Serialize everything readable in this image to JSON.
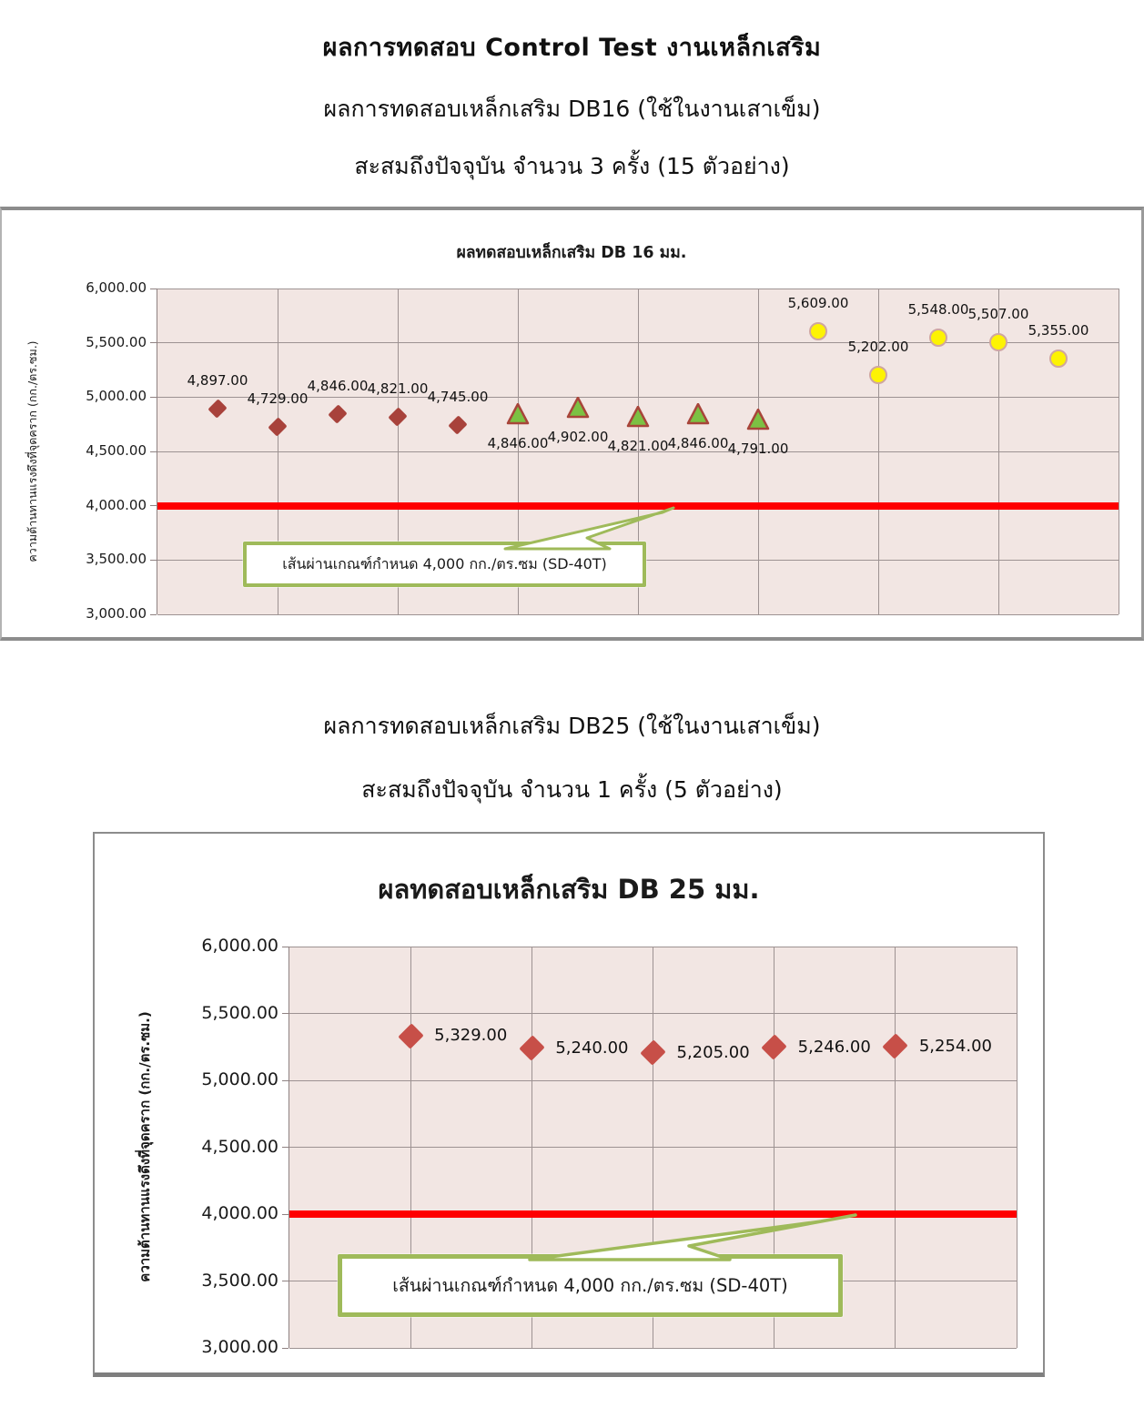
{
  "header": {
    "title": "ผลการทดสอบ Control Test งานเหล็กเสริม",
    "subtitle_line2": "ผลการทดสอบเหล็กเสริม DB16 (ใช้ในงานเสาเข็ม)",
    "subtitle_line3": "สะสมถึงปัจจุบัน จำนวน 3 ครั้ง (15 ตัวอย่าง)"
  },
  "section_db25": {
    "subtitle": "ผลการทดสอบเหล็กเสริม DB25 (ใช้ในงานเสาเข็ม)",
    "subtitle_line2": "สะสมถึงปัจจุบัน จำนวน 1 ครั้ง (5 ตัวอย่าง)"
  },
  "chart_data": [
    {
      "type": "scatter",
      "title": "ผลทดสอบเหล็กเสริม DB 16 มม.",
      "ylabel": "ความต้านทานแรงดึงที่จุดคราก  (กก./ตร.ซม.)",
      "ylim": [
        3000,
        6000
      ],
      "ytick_step": 500,
      "ytick_labels": [
        "6,000.00",
        "5,500.00",
        "5,000.00",
        "4,500.00",
        "4,000.00",
        "3,500.00",
        "3,000.00"
      ],
      "xlim": [
        0,
        16
      ],
      "grid": true,
      "legend": "none",
      "colors": {
        "plot_bg": "#f2e6e3",
        "gridline": "#9d9292",
        "frame": "#8c8c8c"
      },
      "series": [
        {
          "marker": "diamond",
          "fill": "#a8423b",
          "stroke": "#a8423b",
          "label_position": "above",
          "x": [
            1,
            2,
            3,
            4,
            5
          ],
          "values": [
            4897,
            4729,
            4846,
            4821,
            4745
          ],
          "labels": [
            "4,897.00",
            "4,729.00",
            "4,846.00",
            "4,821.00",
            "4,745.00"
          ]
        },
        {
          "marker": "triangle",
          "fill": "#7cc143",
          "stroke": "#a8453a",
          "label_position": "below",
          "x": [
            6,
            7,
            8,
            9,
            10
          ],
          "values": [
            4846,
            4902,
            4821,
            4846,
            4791
          ],
          "labels": [
            "4,846.00",
            "4,902.00",
            "4,821.00",
            "4,846.00",
            "4,791.00"
          ]
        },
        {
          "marker": "circle",
          "fill": "#fdf303",
          "stroke": "#cfa6a0",
          "label_position": "above",
          "x": [
            11,
            12,
            13,
            14,
            15
          ],
          "values": [
            5609,
            5202,
            5548,
            5507,
            5355
          ],
          "labels": [
            "5,609.00",
            "5,202.00",
            "5,548.00",
            "5,507.00",
            "5,355.00"
          ]
        }
      ],
      "limit_line": {
        "value": 4000,
        "color": "#fe0000",
        "label": "เส้นผ่านเกณฑ์กำหนด 4,000  กก./ตร.ซม (SD-40T)"
      }
    },
    {
      "type": "scatter",
      "title": "ผลทดสอบเหล็กเสริม DB 25 มม.",
      "ylabel": "ความต้านทานแรงดึงที่จุดคราก  (กก./ตร.ซม.)",
      "ylim": [
        3000,
        6000
      ],
      "ytick_step": 500,
      "ytick_labels": [
        "6,000.00",
        "5,500.00",
        "5,000.00",
        "4,500.00",
        "4,000.00",
        "3,500.00",
        "3,000.00"
      ],
      "xlim": [
        0,
        6
      ],
      "grid": true,
      "legend": "none",
      "colors": {
        "plot_bg": "#f2e6e3",
        "gridline": "#9d9292",
        "frame": "#8c8c8c"
      },
      "series": [
        {
          "marker": "diamond",
          "fill": "#c74f48",
          "stroke": "#c74f48",
          "label_position": "right",
          "x": [
            1,
            2,
            3,
            4,
            5
          ],
          "values": [
            5329,
            5240,
            5205,
            5246,
            5254
          ],
          "labels": [
            "5,329.00",
            "5,240.00",
            "5,205.00",
            "5,246.00",
            "5,254.00"
          ]
        }
      ],
      "limit_line": {
        "value": 4000,
        "color": "#fe0000",
        "label": "เส้นผ่านเกณฑ์กำหนด 4,000 กก./ตร.ซม (SD-40T)"
      }
    }
  ]
}
